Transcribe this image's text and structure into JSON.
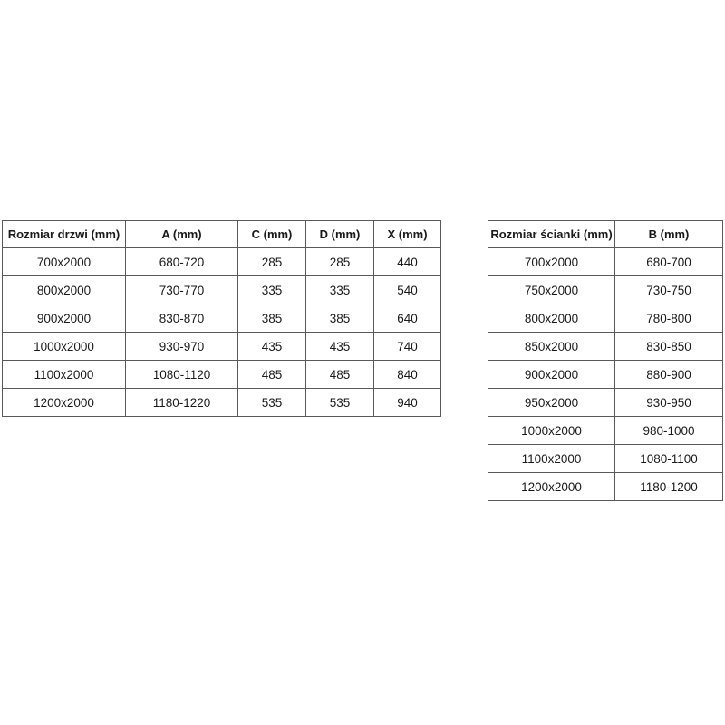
{
  "page": {
    "background_color": "#ffffff",
    "border_color": "#595959",
    "text_color": "#1a1a1a"
  },
  "tables": [
    {
      "id": "door-table",
      "name": "door-size-table",
      "headers": [
        "Rozmiar drzwi (mm)",
        "A (mm)",
        "C (mm)",
        "D (mm)",
        "X (mm)"
      ],
      "rows": [
        [
          "700x2000",
          "680-720",
          "285",
          "285",
          "440"
        ],
        [
          "800x2000",
          "730-770",
          "335",
          "335",
          "540"
        ],
        [
          "900x2000",
          "830-870",
          "385",
          "385",
          "640"
        ],
        [
          "1000x2000",
          "930-970",
          "435",
          "435",
          "740"
        ],
        [
          "1100x2000",
          "1080-1120",
          "485",
          "485",
          "840"
        ],
        [
          "1200x2000",
          "1180-1220",
          "535",
          "535",
          "940"
        ]
      ]
    },
    {
      "id": "wall-table",
      "name": "wall-size-table",
      "headers": [
        "Rozmiar ścianki (mm)",
        "B (mm)"
      ],
      "rows": [
        [
          "700x2000",
          "680-700"
        ],
        [
          "750x2000",
          "730-750"
        ],
        [
          "800x2000",
          "780-800"
        ],
        [
          "850x2000",
          "830-850"
        ],
        [
          "900x2000",
          "880-900"
        ],
        [
          "950x2000",
          "930-950"
        ],
        [
          "1000x2000",
          "980-1000"
        ],
        [
          "1100x2000",
          "1080-1100"
        ],
        [
          "1200x2000",
          "1180-1200"
        ]
      ]
    }
  ]
}
